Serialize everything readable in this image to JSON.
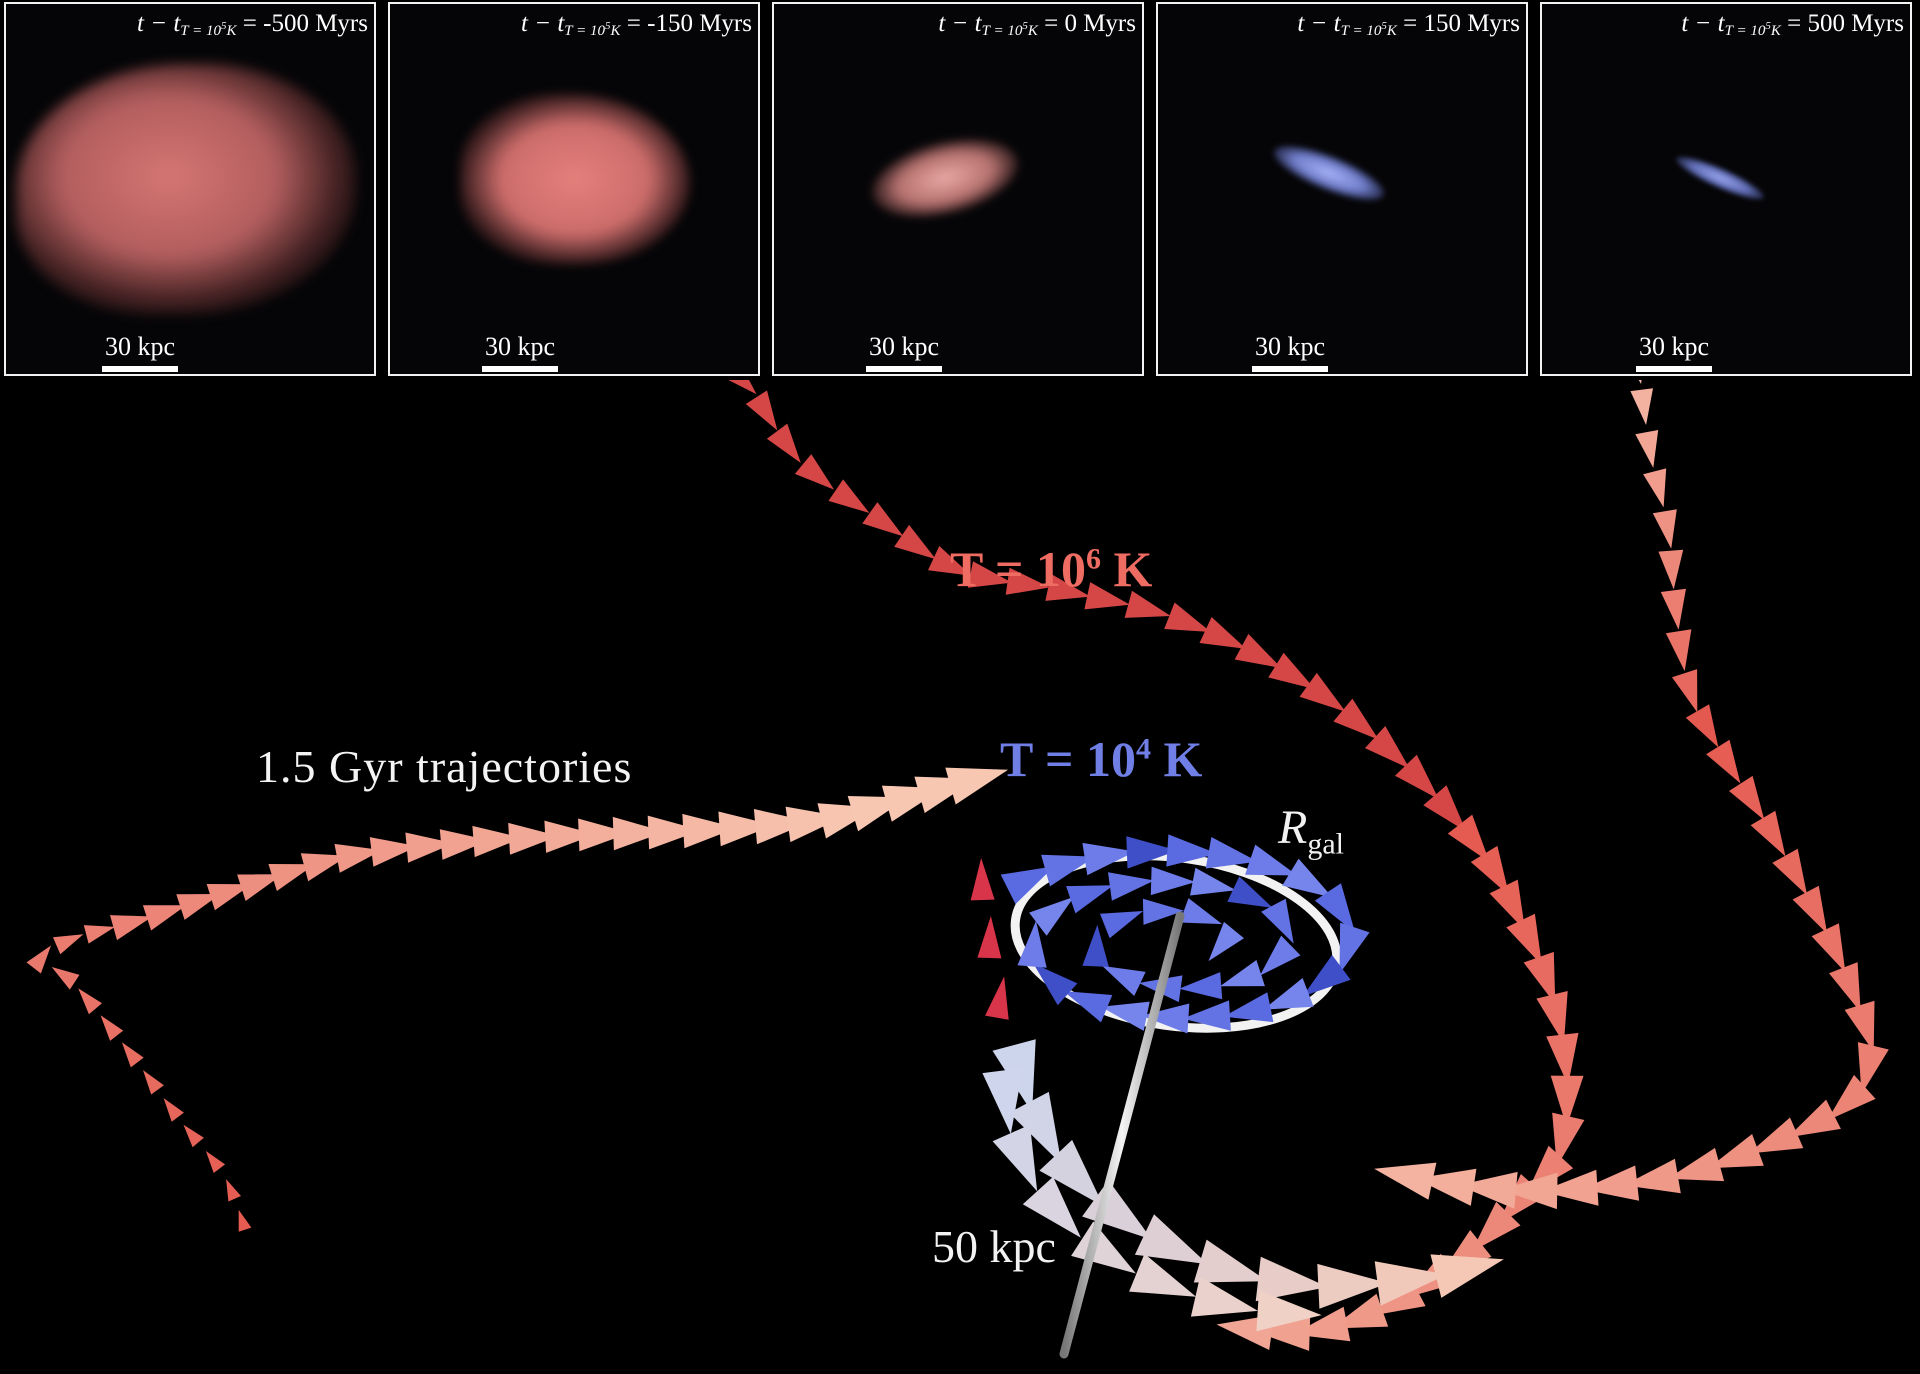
{
  "panels": [
    {
      "name": "panel-minus-500",
      "time_value": "-500",
      "unit": "Myrs",
      "scale": "30 kpc",
      "tint": "#e8807c"
    },
    {
      "name": "panel-minus-150",
      "time_value": "-150",
      "unit": "Myrs",
      "scale": "30 kpc",
      "tint": "#ee8a84"
    },
    {
      "name": "panel-0",
      "time_value": "0",
      "unit": "Myrs",
      "scale": "30 kpc",
      "tint": "#f2a2a0"
    },
    {
      "name": "panel-150",
      "time_value": "150",
      "unit": "Myrs",
      "scale": "30 kpc",
      "tint": "#8b98f0"
    },
    {
      "name": "panel-500",
      "time_value": "500",
      "unit": "Myrs",
      "scale": "30 kpc",
      "tint": "#8592e6"
    }
  ],
  "time_label": {
    "prefix": "t − t",
    "subscript": "T = 10",
    "subscript_exp": "5",
    "subscript_unit": "K",
    "equals": " = "
  },
  "labels": {
    "trajectories": "1.5 Gyr trajectories",
    "hot_prefix": "T = 10",
    "hot_exp": "6",
    "hot_suffix": " K",
    "cold_prefix": "T = 10",
    "cold_exp": "4",
    "cold_suffix": " K",
    "rgal_main": "R",
    "rgal_sub": "gal",
    "scale_50": "50 kpc"
  },
  "colors": {
    "hot": "#ee6c62",
    "cold": "#6f7fe6",
    "arrow_hot": "#e4574e",
    "arrow_warm": "#f7c7b2",
    "arrow_cold": "#5a6ae0",
    "arrow_pale_blue": "#c8d6f2"
  }
}
